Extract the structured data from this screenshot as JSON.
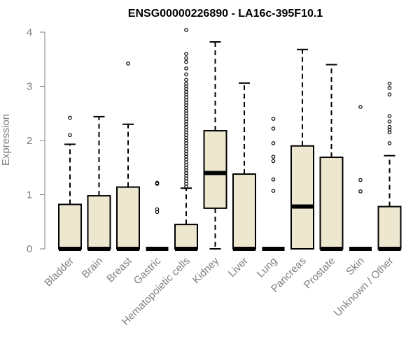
{
  "chart_data": {
    "type": "boxplot",
    "title": "ENSG00000226890 - LA16c-395F10.1",
    "ylabel": "Expression",
    "xlabel": "",
    "ylim": [
      0,
      4.1
    ],
    "yticks": [
      0,
      1,
      2,
      3,
      4
    ],
    "yticklabels": [
      "0",
      "1",
      "2",
      "3",
      "4"
    ],
    "colors": {
      "box_fill": "#ede7d0",
      "stroke": "#000000",
      "axis_text": "#808080"
    },
    "categories": [
      "Bladder",
      "Brain",
      "Breast",
      "Gastric",
      "Hematopoietic cells",
      "Kidney",
      "Liver",
      "Lung",
      "Pancreas",
      "Prostate",
      "Skin",
      "Unknown / Other"
    ],
    "boxes": [
      {
        "q1": 0,
        "median": 0,
        "q3": 0.82,
        "whisker_low": 0,
        "whisker_high": 1.93,
        "outliers": [
          2.1,
          2.42
        ]
      },
      {
        "q1": 0,
        "median": 0,
        "q3": 0.98,
        "whisker_low": 0,
        "whisker_high": 2.44,
        "outliers": []
      },
      {
        "q1": 0,
        "median": 0,
        "q3": 1.14,
        "whisker_low": 0,
        "whisker_high": 2.3,
        "outliers": [
          3.42
        ]
      },
      {
        "q1": 0,
        "median": 0,
        "q3": 0,
        "whisker_low": 0,
        "whisker_high": 0,
        "outliers": [
          0.68,
          0.73,
          1.2,
          1.22
        ]
      },
      {
        "q1": 0,
        "median": 0,
        "q3": 0.45,
        "whisker_low": 0,
        "whisker_high": 1.12,
        "outliers": [
          1.15,
          1.2,
          1.25,
          1.3,
          1.35,
          1.4,
          1.45,
          1.5,
          1.55,
          1.6,
          1.65,
          1.7,
          1.75,
          1.8,
          1.85,
          1.9,
          1.95,
          2.0,
          2.05,
          2.1,
          2.15,
          2.2,
          2.25,
          2.3,
          2.35,
          2.4,
          2.45,
          2.5,
          2.55,
          2.6,
          2.65,
          2.7,
          2.75,
          2.8,
          2.85,
          2.9,
          2.95,
          3.0,
          3.05,
          3.12,
          3.22,
          3.33,
          3.45,
          3.52,
          3.6,
          4.04
        ]
      },
      {
        "q1": 0.75,
        "median": 1.4,
        "q3": 2.18,
        "whisker_low": 0,
        "whisker_high": 3.82,
        "outliers": []
      },
      {
        "q1": 0,
        "median": 0,
        "q3": 1.38,
        "whisker_low": 0,
        "whisker_high": 3.06,
        "outliers": []
      },
      {
        "q1": 0,
        "median": 0,
        "q3": 0,
        "whisker_low": 0,
        "whisker_high": 0,
        "outliers": [
          1.07,
          1.28,
          1.62,
          1.7,
          1.95,
          2.22,
          2.4
        ]
      },
      {
        "q1": 0,
        "median": 0.78,
        "q3": 1.9,
        "whisker_low": 0,
        "whisker_high": 3.68,
        "outliers": []
      },
      {
        "q1": 0,
        "median": 0,
        "q3": 1.69,
        "whisker_low": 0,
        "whisker_high": 3.4,
        "outliers": []
      },
      {
        "q1": 0,
        "median": 0,
        "q3": 0,
        "whisker_low": 0,
        "whisker_high": 0,
        "outliers": [
          1.06,
          1.27,
          2.62
        ]
      },
      {
        "q1": 0,
        "median": 0,
        "q3": 0.78,
        "whisker_low": 0,
        "whisker_high": 1.72,
        "outliers": [
          1.95,
          2.15,
          2.2,
          2.25,
          2.35,
          2.45,
          2.85,
          2.97,
          3.05
        ]
      }
    ]
  }
}
